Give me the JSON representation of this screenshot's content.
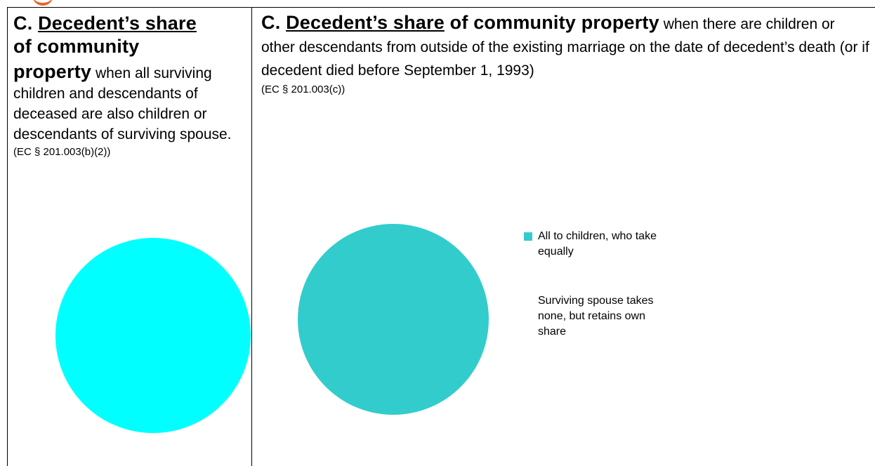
{
  "left": {
    "heading_prefix": "C. ",
    "heading_underlined": "Decedent’s share",
    "heading_rest": "of community",
    "heading_bold_last": "property",
    "body": " when all surviving children and descendants of deceased are also children or descendants of surviving spouse.",
    "citation": "(EC § 201.003(b)(2))",
    "pie_color": "#00ffff"
  },
  "right": {
    "heading_prefix": "C. ",
    "heading_underlined": "Decedent’s share",
    "heading_rest": " of community property",
    "body": " when there are children or other descendants from outside of the existing marriage on the date of decedent’s death (or if decedent died before September 1, 1993)",
    "citation": "(EC § 201.003(c))",
    "pie_color": "#33cccc",
    "legend": {
      "item": "All to children, who take equally",
      "item_color": "#33cccc",
      "note": "Surviving spouse takes none, but retains own share"
    }
  },
  "chart_data": [
    {
      "type": "pie",
      "slices": [
        {
          "value": 100
        }
      ]
    },
    {
      "type": "pie",
      "slices": [
        {
          "label": "All to children, who take equally",
          "value": 100
        }
      ]
    }
  ]
}
